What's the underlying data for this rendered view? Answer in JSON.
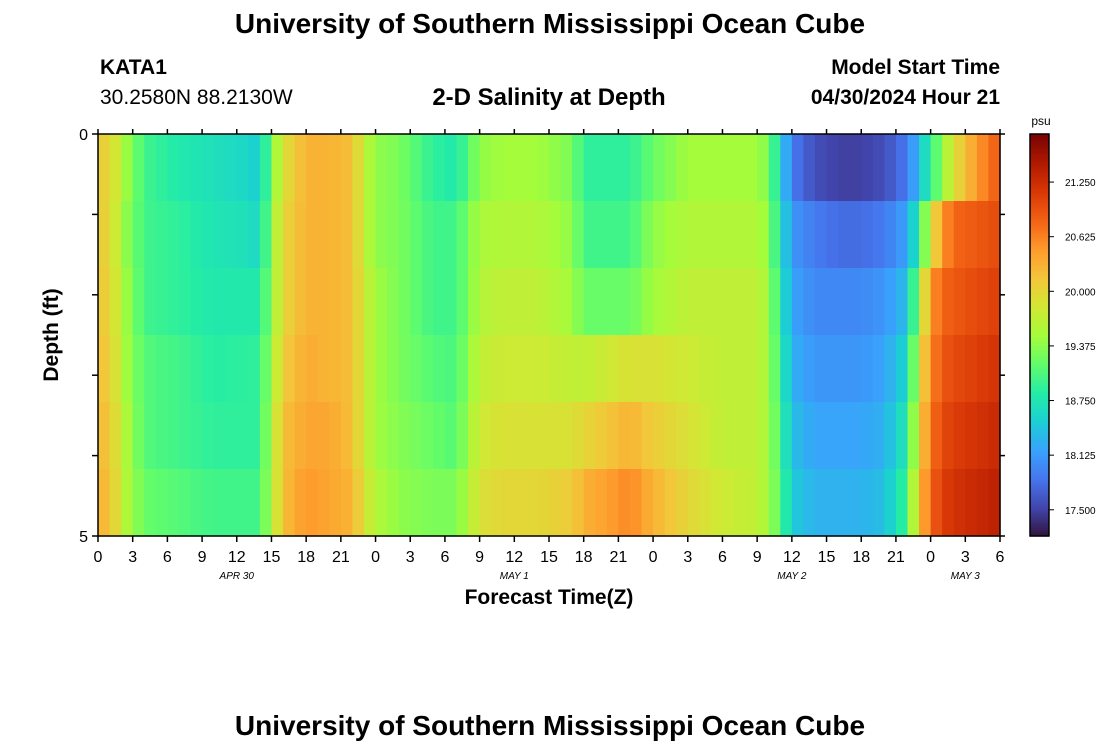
{
  "header": {
    "title": "University of Southern Mississippi Ocean Cube",
    "station": "KATA1",
    "coords": "30.2580N  88.2130W",
    "plot_title": "2-D Salinity at Depth",
    "model_start_label": "Model Start Time",
    "model_start_value": "04/30/2024 Hour 21"
  },
  "footer": {
    "title": "University of Southern Mississippi Ocean Cube"
  },
  "colors": {
    "palette": [
      "#30123b",
      "#4145ab",
      "#4675ed",
      "#39a2fc",
      "#1bcfd4",
      "#24eca6",
      "#61fc6c",
      "#a4fc3b",
      "#d1e834",
      "#f3c63a",
      "#fe9b2d",
      "#f36315",
      "#d93806",
      "#b11901",
      "#7a0403"
    ]
  },
  "chart_data": {
    "type": "heatmap",
    "title": "2-D Salinity at Depth",
    "xlabel": "Forecast Time(Z)",
    "ylabel": "Depth (ft)",
    "xlim": [
      0,
      78
    ],
    "ylim": [
      0,
      5
    ],
    "y_ticks": [
      "0",
      "5"
    ],
    "x_tick_labels": [
      "0",
      "3",
      "6",
      "9",
      "12",
      "15",
      "18",
      "21",
      "0",
      "3",
      "6",
      "9",
      "12",
      "15",
      "18",
      "21",
      "0",
      "3",
      "6",
      "9",
      "12",
      "15",
      "18",
      "21",
      "0",
      "3",
      "6"
    ],
    "date_labels": [
      {
        "label": "APR 30",
        "hour": 12
      },
      {
        "label": "MAY 1",
        "hour": 36
      },
      {
        "label": "MAY 2",
        "hour": 60
      },
      {
        "label": "MAY 3",
        "hour": 75
      }
    ],
    "colorbar": {
      "unit": "psu",
      "min": 17.2,
      "max": 21.8,
      "ticks": [
        "21.250",
        "20.625",
        "20.000",
        "19.375",
        "18.750",
        "18.125",
        "17.500"
      ]
    },
    "keyframes_hours": [
      0,
      1,
      2,
      4,
      7,
      10,
      13,
      14,
      15,
      16,
      18,
      20,
      22,
      23,
      24,
      26,
      29,
      31,
      32,
      33,
      35,
      38,
      41,
      42,
      46,
      48,
      51,
      54,
      57,
      58,
      59,
      60,
      62,
      64,
      66,
      68,
      70,
      71,
      72,
      73,
      74,
      76,
      78
    ],
    "layers": [
      {
        "depth": "0-1 ft",
        "values": [
          20.0,
          20.1,
          19.6,
          19.0,
          18.8,
          18.7,
          18.6,
          18.5,
          19.3,
          19.9,
          20.3,
          20.3,
          20.2,
          19.7,
          19.4,
          19.3,
          18.9,
          18.8,
          19.1,
          19.4,
          19.5,
          19.5,
          19.3,
          18.9,
          18.9,
          19.2,
          19.5,
          19.5,
          19.5,
          19.3,
          18.6,
          17.9,
          17.6,
          17.5,
          17.5,
          17.6,
          17.9,
          18.4,
          18.9,
          19.4,
          19.9,
          20.5,
          20.9
        ]
      },
      {
        "depth": "1-2 ft",
        "values": [
          20.0,
          20.1,
          19.5,
          19.0,
          18.9,
          18.75,
          18.7,
          18.6,
          19.4,
          20.0,
          20.3,
          20.3,
          20.2,
          19.7,
          19.4,
          19.3,
          19.0,
          19.0,
          19.3,
          19.55,
          19.6,
          19.6,
          19.4,
          19.0,
          19.0,
          19.4,
          19.6,
          19.6,
          19.6,
          19.4,
          18.7,
          18.1,
          17.9,
          17.8,
          17.8,
          17.9,
          18.2,
          18.9,
          19.8,
          20.5,
          20.8,
          20.9,
          21.0
        ]
      },
      {
        "depth": "2-3 ft",
        "values": [
          20.1,
          20.1,
          19.6,
          19.0,
          18.9,
          18.8,
          18.8,
          18.8,
          19.4,
          20.0,
          20.3,
          20.3,
          20.2,
          19.8,
          19.5,
          19.3,
          19.0,
          19.0,
          19.3,
          19.6,
          19.7,
          19.7,
          19.5,
          19.2,
          19.2,
          19.5,
          19.7,
          19.7,
          19.7,
          19.5,
          18.8,
          18.2,
          18.0,
          18.0,
          18.0,
          18.1,
          18.4,
          19.5,
          20.5,
          20.8,
          20.9,
          21.0,
          21.1
        ]
      },
      {
        "depth": "3-4 ft",
        "values": [
          20.1,
          20.2,
          19.6,
          19.1,
          19.0,
          18.85,
          18.9,
          18.9,
          19.5,
          20.1,
          20.35,
          20.3,
          20.2,
          19.8,
          19.5,
          19.3,
          19.1,
          19.05,
          19.4,
          19.7,
          19.8,
          19.8,
          19.7,
          19.7,
          19.9,
          19.9,
          19.8,
          19.7,
          19.7,
          19.5,
          18.9,
          18.3,
          18.1,
          18.1,
          18.1,
          18.2,
          18.6,
          19.8,
          20.6,
          20.9,
          21.0,
          21.1,
          21.2
        ]
      },
      {
        "depth": "4-5 ft",
        "values": [
          20.2,
          20.2,
          19.7,
          19.1,
          19.0,
          18.9,
          18.9,
          18.9,
          19.6,
          20.2,
          20.4,
          20.4,
          20.2,
          19.8,
          19.5,
          19.35,
          19.2,
          19.1,
          19.5,
          19.8,
          19.9,
          19.9,
          19.9,
          20.0,
          20.3,
          20.1,
          19.9,
          19.7,
          19.7,
          19.5,
          19.0,
          18.4,
          18.2,
          18.2,
          18.2,
          18.3,
          18.8,
          20.0,
          20.7,
          21.0,
          21.1,
          21.2,
          21.3
        ]
      },
      {
        "depth": "5 ft",
        "values": [
          20.2,
          20.3,
          19.7,
          19.2,
          19.1,
          19.0,
          19.0,
          19.0,
          19.6,
          20.2,
          20.5,
          20.4,
          20.3,
          19.9,
          19.6,
          19.4,
          19.3,
          19.3,
          19.6,
          19.9,
          20.0,
          20.0,
          20.1,
          20.3,
          20.6,
          20.3,
          20.0,
          19.8,
          19.7,
          19.5,
          19.1,
          18.5,
          18.3,
          18.3,
          18.3,
          18.4,
          19.0,
          20.2,
          20.8,
          21.1,
          21.2,
          21.3,
          21.4
        ]
      }
    ]
  }
}
